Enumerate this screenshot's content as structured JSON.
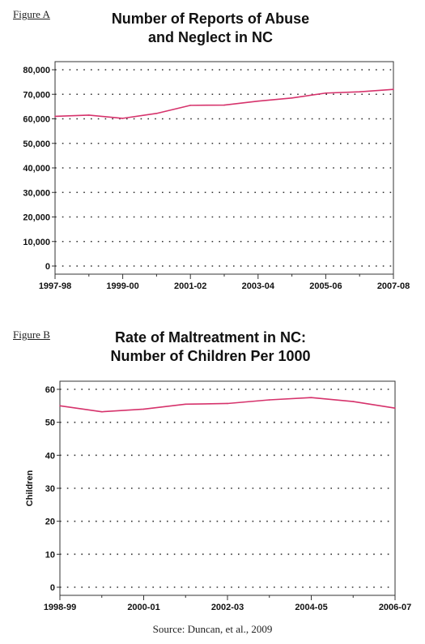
{
  "figure_a": {
    "label": "Figure A"
  },
  "figure_b": {
    "label": "Figure B"
  },
  "source": "Source: Duncan, et al., 2009",
  "colors": {
    "line": "#d6336c",
    "frame": "#333333",
    "grid": "#333333"
  },
  "chart_data": [
    {
      "type": "line",
      "title_lines": [
        "Number of Reports of Abuse",
        "and Neglect in NC"
      ],
      "xlabel": "",
      "ylabel": "",
      "x": [
        "1997-98",
        "1998-99",
        "1999-00",
        "2000-01",
        "2001-02",
        "2002-03",
        "2003-04",
        "2004-05",
        "2005-06",
        "2006-07",
        "2007-08"
      ],
      "x_tick_labels": [
        "1997-98",
        "1999-00",
        "2001-02",
        "2003-04",
        "2005-06",
        "2007-08"
      ],
      "series": [
        {
          "values": [
            61000,
            61500,
            60200,
            62200,
            65500,
            65600,
            67200,
            68500,
            70500,
            71000,
            72000
          ]
        }
      ],
      "ylim": [
        0,
        80000
      ],
      "y_ticks": [
        0,
        10000,
        20000,
        30000,
        40000,
        50000,
        60000,
        70000,
        80000
      ],
      "y_tick_labels": [
        "0",
        "10,000",
        "20,000",
        "30,000",
        "40,000",
        "50,000",
        "60,000",
        "70,000",
        "80,000"
      ],
      "grid": true
    },
    {
      "type": "line",
      "title_lines": [
        "Rate of Maltreatment in NC:",
        "Number of Children Per 1000"
      ],
      "xlabel": "",
      "ylabel": "Children",
      "x": [
        "1998-99",
        "1999-00",
        "2000-01",
        "2001-02",
        "2002-03",
        "2003-04",
        "2004-05",
        "2005-06",
        "2006-07"
      ],
      "x_tick_labels": [
        "1998-99",
        "2000-01",
        "2002-03",
        "2004-05",
        "2006-07"
      ],
      "series": [
        {
          "values": [
            55,
            53.2,
            54,
            55.5,
            55.7,
            56.8,
            57.5,
            56.3,
            54.3
          ]
        }
      ],
      "ylim": [
        0,
        60
      ],
      "y_ticks": [
        0,
        10,
        20,
        30,
        40,
        50,
        60
      ],
      "y_tick_labels": [
        "0",
        "10",
        "20",
        "30",
        "40",
        "50",
        "60"
      ],
      "grid": true
    }
  ]
}
